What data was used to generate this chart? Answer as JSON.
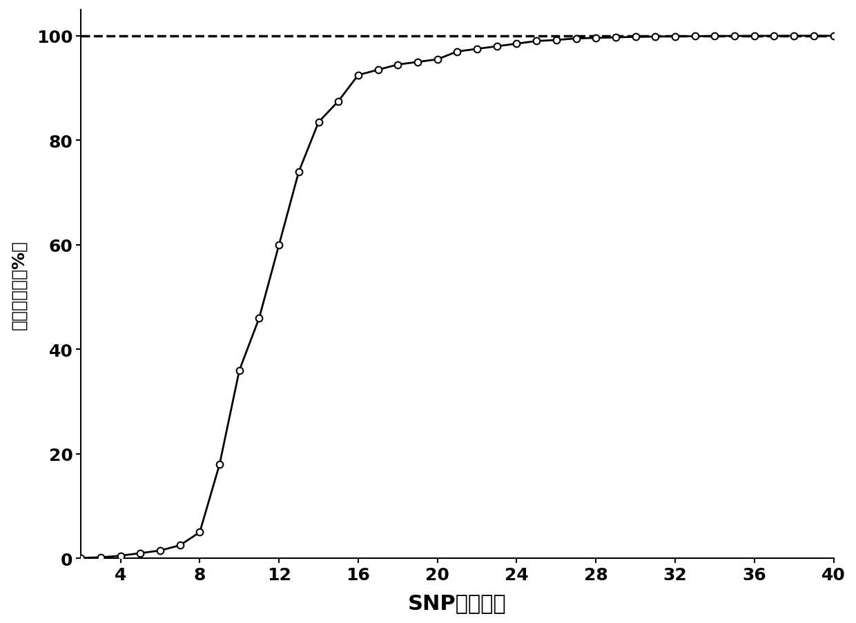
{
  "x": [
    2,
    3,
    4,
    5,
    6,
    7,
    8,
    9,
    10,
    11,
    12,
    13,
    14,
    15,
    16,
    17,
    18,
    19,
    20,
    21,
    22,
    23,
    24,
    25,
    26,
    27,
    28,
    29,
    30,
    31,
    32,
    33,
    34,
    35,
    36,
    37,
    38,
    39,
    40
  ],
  "y": [
    0.1,
    0.2,
    0.5,
    1.0,
    1.5,
    2.5,
    5.0,
    18.0,
    36.0,
    46.0,
    60.0,
    74.0,
    83.5,
    87.5,
    92.5,
    93.5,
    94.5,
    95.0,
    95.5,
    97.0,
    97.5,
    98.0,
    98.5,
    99.0,
    99.2,
    99.5,
    99.6,
    99.7,
    99.8,
    99.85,
    99.9,
    99.92,
    99.95,
    99.97,
    99.98,
    99.99,
    100.0,
    100.0,
    100.0
  ],
  "dashed_y": 100,
  "line_color": "#000000",
  "dashed_color": "#000000",
  "marker": "o",
  "marker_facecolor": "#ffffff",
  "marker_edgecolor": "#000000",
  "marker_size": 7,
  "line_width": 2.0,
  "xlabel": "SNP标记个数",
  "ylabel": "品种区分率（%）",
  "xlim": [
    2,
    40
  ],
  "ylim": [
    0,
    105
  ],
  "xticks": [
    4,
    8,
    12,
    16,
    20,
    24,
    28,
    32,
    36,
    40
  ],
  "yticks": [
    0,
    20,
    40,
    60,
    80,
    100
  ],
  "xlabel_fontsize": 22,
  "ylabel_fontsize": 18,
  "tick_fontsize": 18,
  "background_color": "#ffffff",
  "chinese_font": "SimHei"
}
